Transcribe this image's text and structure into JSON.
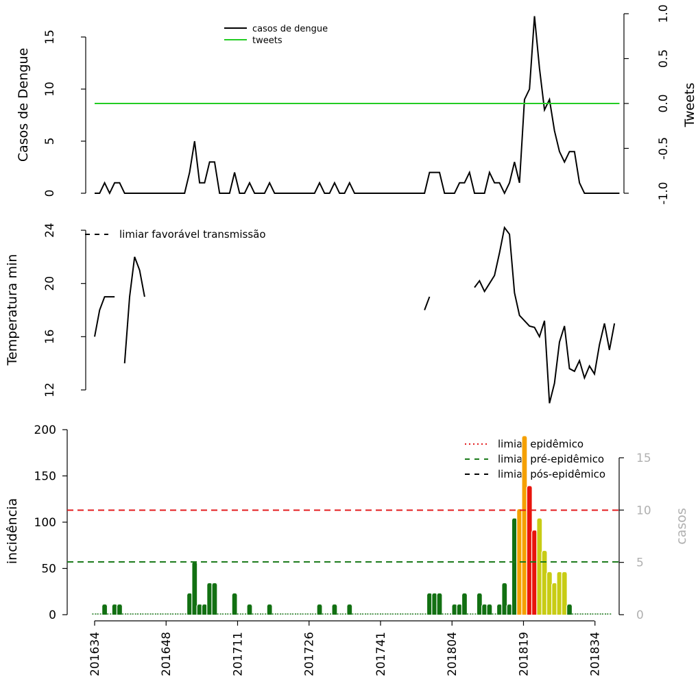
{
  "chart_data": [
    {
      "type": "line",
      "ylabel": "Casos de Dengue",
      "ylabel_right": "Tweets",
      "ylim": [
        0,
        17
      ],
      "yticks": [
        "0",
        "5",
        "10",
        "15"
      ],
      "ylim_right": [
        -1,
        1
      ],
      "yticks_right": [
        "-1.0",
        "-0.5",
        "0.0",
        "0.5",
        "1.0"
      ],
      "legend_position": "top-center",
      "series": [
        {
          "name": "casos de dengue",
          "color": "#000000",
          "values": [
            0,
            0,
            1,
            0,
            1,
            1,
            0,
            0,
            0,
            0,
            0,
            0,
            0,
            0,
            0,
            0,
            0,
            0,
            0,
            2,
            5,
            1,
            1,
            3,
            3,
            0,
            0,
            0,
            2,
            0,
            0,
            1,
            0,
            0,
            0,
            1,
            0,
            0,
            0,
            0,
            0,
            0,
            0,
            0,
            0,
            1,
            0,
            0,
            1,
            0,
            0,
            1,
            0,
            0,
            0,
            0,
            0,
            0,
            0,
            0,
            0,
            0,
            0,
            0,
            0,
            0,
            0,
            2,
            2,
            2,
            0,
            0,
            0,
            1,
            1,
            2,
            0,
            0,
            0,
            2,
            1,
            1,
            0,
            1,
            3,
            1,
            9,
            10,
            17,
            12,
            8,
            9,
            6,
            4,
            3,
            4,
            4,
            1,
            0,
            0,
            0,
            0,
            0,
            0,
            0,
            0
          ]
        },
        {
          "name": "tweets",
          "color": "#22cc22",
          "values_constant": 0
        }
      ]
    },
    {
      "type": "line",
      "ylabel": "Temperatura min",
      "ylim": [
        12,
        24
      ],
      "yticks": [
        "12",
        "16",
        "20",
        "24"
      ],
      "legend_position": "top-left",
      "series": [
        {
          "name": "limiar favorável transmissão",
          "color": "#000000",
          "style": "dashed"
        },
        {
          "name": "temperatura",
          "color": "#000000",
          "segments": [
            [
              [
                0,
                16
              ],
              [
                1,
                18
              ],
              [
                2,
                19
              ],
              [
                3,
                19
              ],
              [
                4,
                19
              ]
            ],
            [
              [
                6,
                14
              ],
              [
                7,
                19
              ],
              [
                8,
                22
              ],
              [
                9,
                21
              ],
              [
                10,
                19
              ]
            ],
            [
              [
                66,
                18
              ],
              [
                67,
                19
              ]
            ],
            [
              [
                76,
                19.7
              ],
              [
                77,
                20.2
              ],
              [
                78,
                19.4
              ],
              [
                79,
                20
              ],
              [
                80,
                20.6
              ],
              [
                81,
                22.3
              ],
              [
                82,
                24.2
              ],
              [
                83,
                23.7
              ],
              [
                84,
                19.3
              ],
              [
                85,
                17.6
              ],
              [
                86,
                17.2
              ],
              [
                87,
                16.8
              ],
              [
                88,
                16.7
              ],
              [
                89,
                16
              ],
              [
                90,
                17.2
              ],
              [
                91,
                11
              ],
              [
                92,
                12.5
              ],
              [
                93,
                15.6
              ],
              [
                94,
                16.8
              ],
              [
                95,
                13.6
              ],
              [
                96,
                13.4
              ],
              [
                97,
                14.2
              ],
              [
                98,
                12.9
              ],
              [
                99,
                13.8
              ],
              [
                100,
                13.2
              ],
              [
                101,
                15.4
              ],
              [
                102,
                17
              ],
              [
                103,
                15
              ],
              [
                104,
                17
              ]
            ]
          ]
        }
      ]
    },
    {
      "type": "bar",
      "ylabel": "incidência",
      "ylabel_right": "casos",
      "ylim": [
        0,
        200
      ],
      "yticks": [
        "0",
        "50",
        "100",
        "150",
        "200"
      ],
      "ylim_right": [
        0,
        15
      ],
      "yticks_right": [
        "0",
        "5",
        "10",
        "15"
      ],
      "xtick_labels": [
        "201634",
        "201648",
        "201711",
        "201726",
        "201741",
        "201804",
        "201819",
        "201834"
      ],
      "legend_position": "top-right",
      "thresholds": [
        {
          "name": "limiar epidêmico",
          "value": 113,
          "color": "#e31a1c",
          "style": "dashed"
        },
        {
          "name": "limiar pré-epidêmico",
          "value": 57,
          "color": "#1b7a1b",
          "style": "dashed"
        },
        {
          "name": "limiar pós-epidêmico",
          "color": "#000000",
          "style": "dashed"
        }
      ],
      "bar_colors": {
        "green": "#127012",
        "orange": "#f5a000",
        "red": "#e8140c",
        "yellow": "#c8cc14"
      },
      "bar_color_spans": [
        {
          "from": 0,
          "to": 84,
          "color": "green"
        },
        {
          "from": 85,
          "to": 86,
          "color": "orange"
        },
        {
          "from": 87,
          "to": 88,
          "color": "red"
        },
        {
          "from": 89,
          "to": 94,
          "color": "yellow"
        },
        {
          "from": 95,
          "to": 100,
          "color": "green"
        }
      ],
      "values": [
        0,
        0,
        11,
        0,
        11,
        11,
        0,
        0,
        0,
        0,
        0,
        0,
        0,
        0,
        0,
        0,
        0,
        0,
        0,
        23,
        57,
        11,
        11,
        34,
        34,
        0,
        0,
        0,
        23,
        0,
        0,
        11,
        0,
        0,
        0,
        11,
        0,
        0,
        0,
        0,
        0,
        0,
        0,
        0,
        0,
        11,
        0,
        0,
        11,
        0,
        0,
        11,
        0,
        0,
        0,
        0,
        0,
        0,
        0,
        0,
        0,
        0,
        0,
        0,
        0,
        0,
        0,
        23,
        23,
        23,
        0,
        0,
        11,
        11,
        23,
        0,
        0,
        23,
        11,
        11,
        0,
        11,
        34,
        11,
        104,
        114,
        193,
        139,
        91,
        104,
        69,
        46,
        34,
        46,
        46,
        11,
        0,
        0,
        0,
        0,
        0,
        0,
        0,
        0
      ]
    }
  ]
}
